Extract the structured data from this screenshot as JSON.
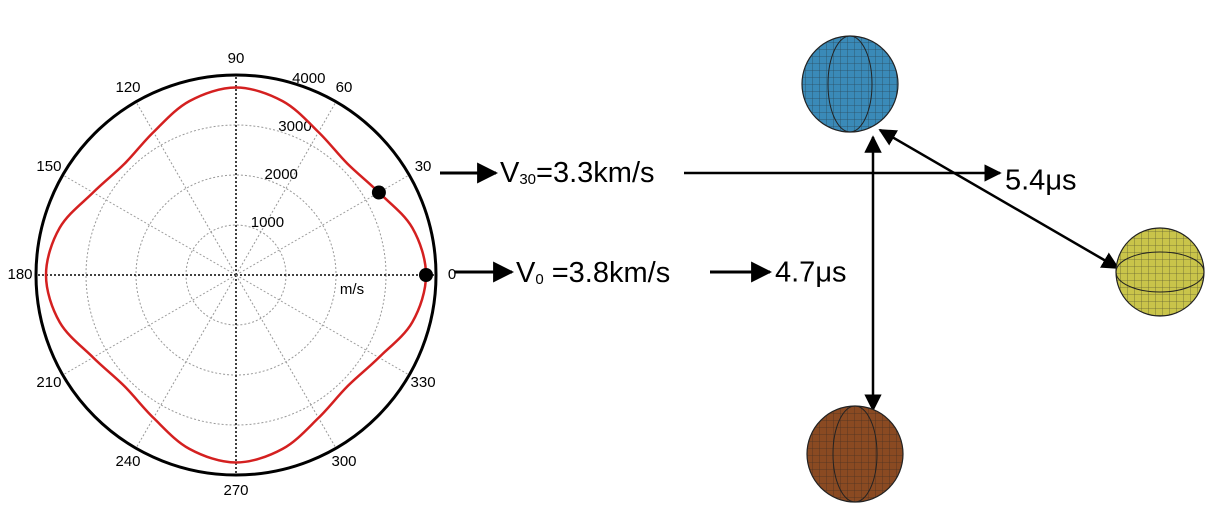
{
  "chart_data": {
    "type": "polar",
    "theta_ticks": [
      0,
      30,
      60,
      90,
      120,
      150,
      180,
      210,
      240,
      270,
      300,
      330
    ],
    "rlim": [
      0,
      4000
    ],
    "rticks": [
      1000,
      2000,
      3000,
      4000
    ],
    "r_label": "m/s",
    "grid": true,
    "series": [
      {
        "color": "#d42020",
        "theta": [
          0,
          15,
          30,
          45,
          60,
          75,
          90,
          105,
          120,
          135,
          150,
          165,
          180,
          195,
          210,
          225,
          240,
          255,
          270,
          285,
          300,
          315,
          330,
          345
        ],
        "values": [
          3800,
          3650,
          3300,
          3150,
          3300,
          3600,
          3750,
          3600,
          3300,
          3150,
          3300,
          3650,
          3800,
          3650,
          3300,
          3150,
          3300,
          3600,
          3750,
          3600,
          3300,
          3150,
          3300,
          3650
        ]
      },
      {
        "color": "#000000",
        "theta": [
          0,
          30
        ],
        "values": [
          3800,
          3300
        ]
      }
    ]
  },
  "diagram": {
    "v30": {
      "base": "V",
      "sub": "30",
      "rest": "=3.3km/s"
    },
    "v0": {
      "base": "V",
      "sub": "0",
      "rest": " =3.8km/s"
    },
    "t30": "5.4μs",
    "t0": "4.7μs"
  }
}
